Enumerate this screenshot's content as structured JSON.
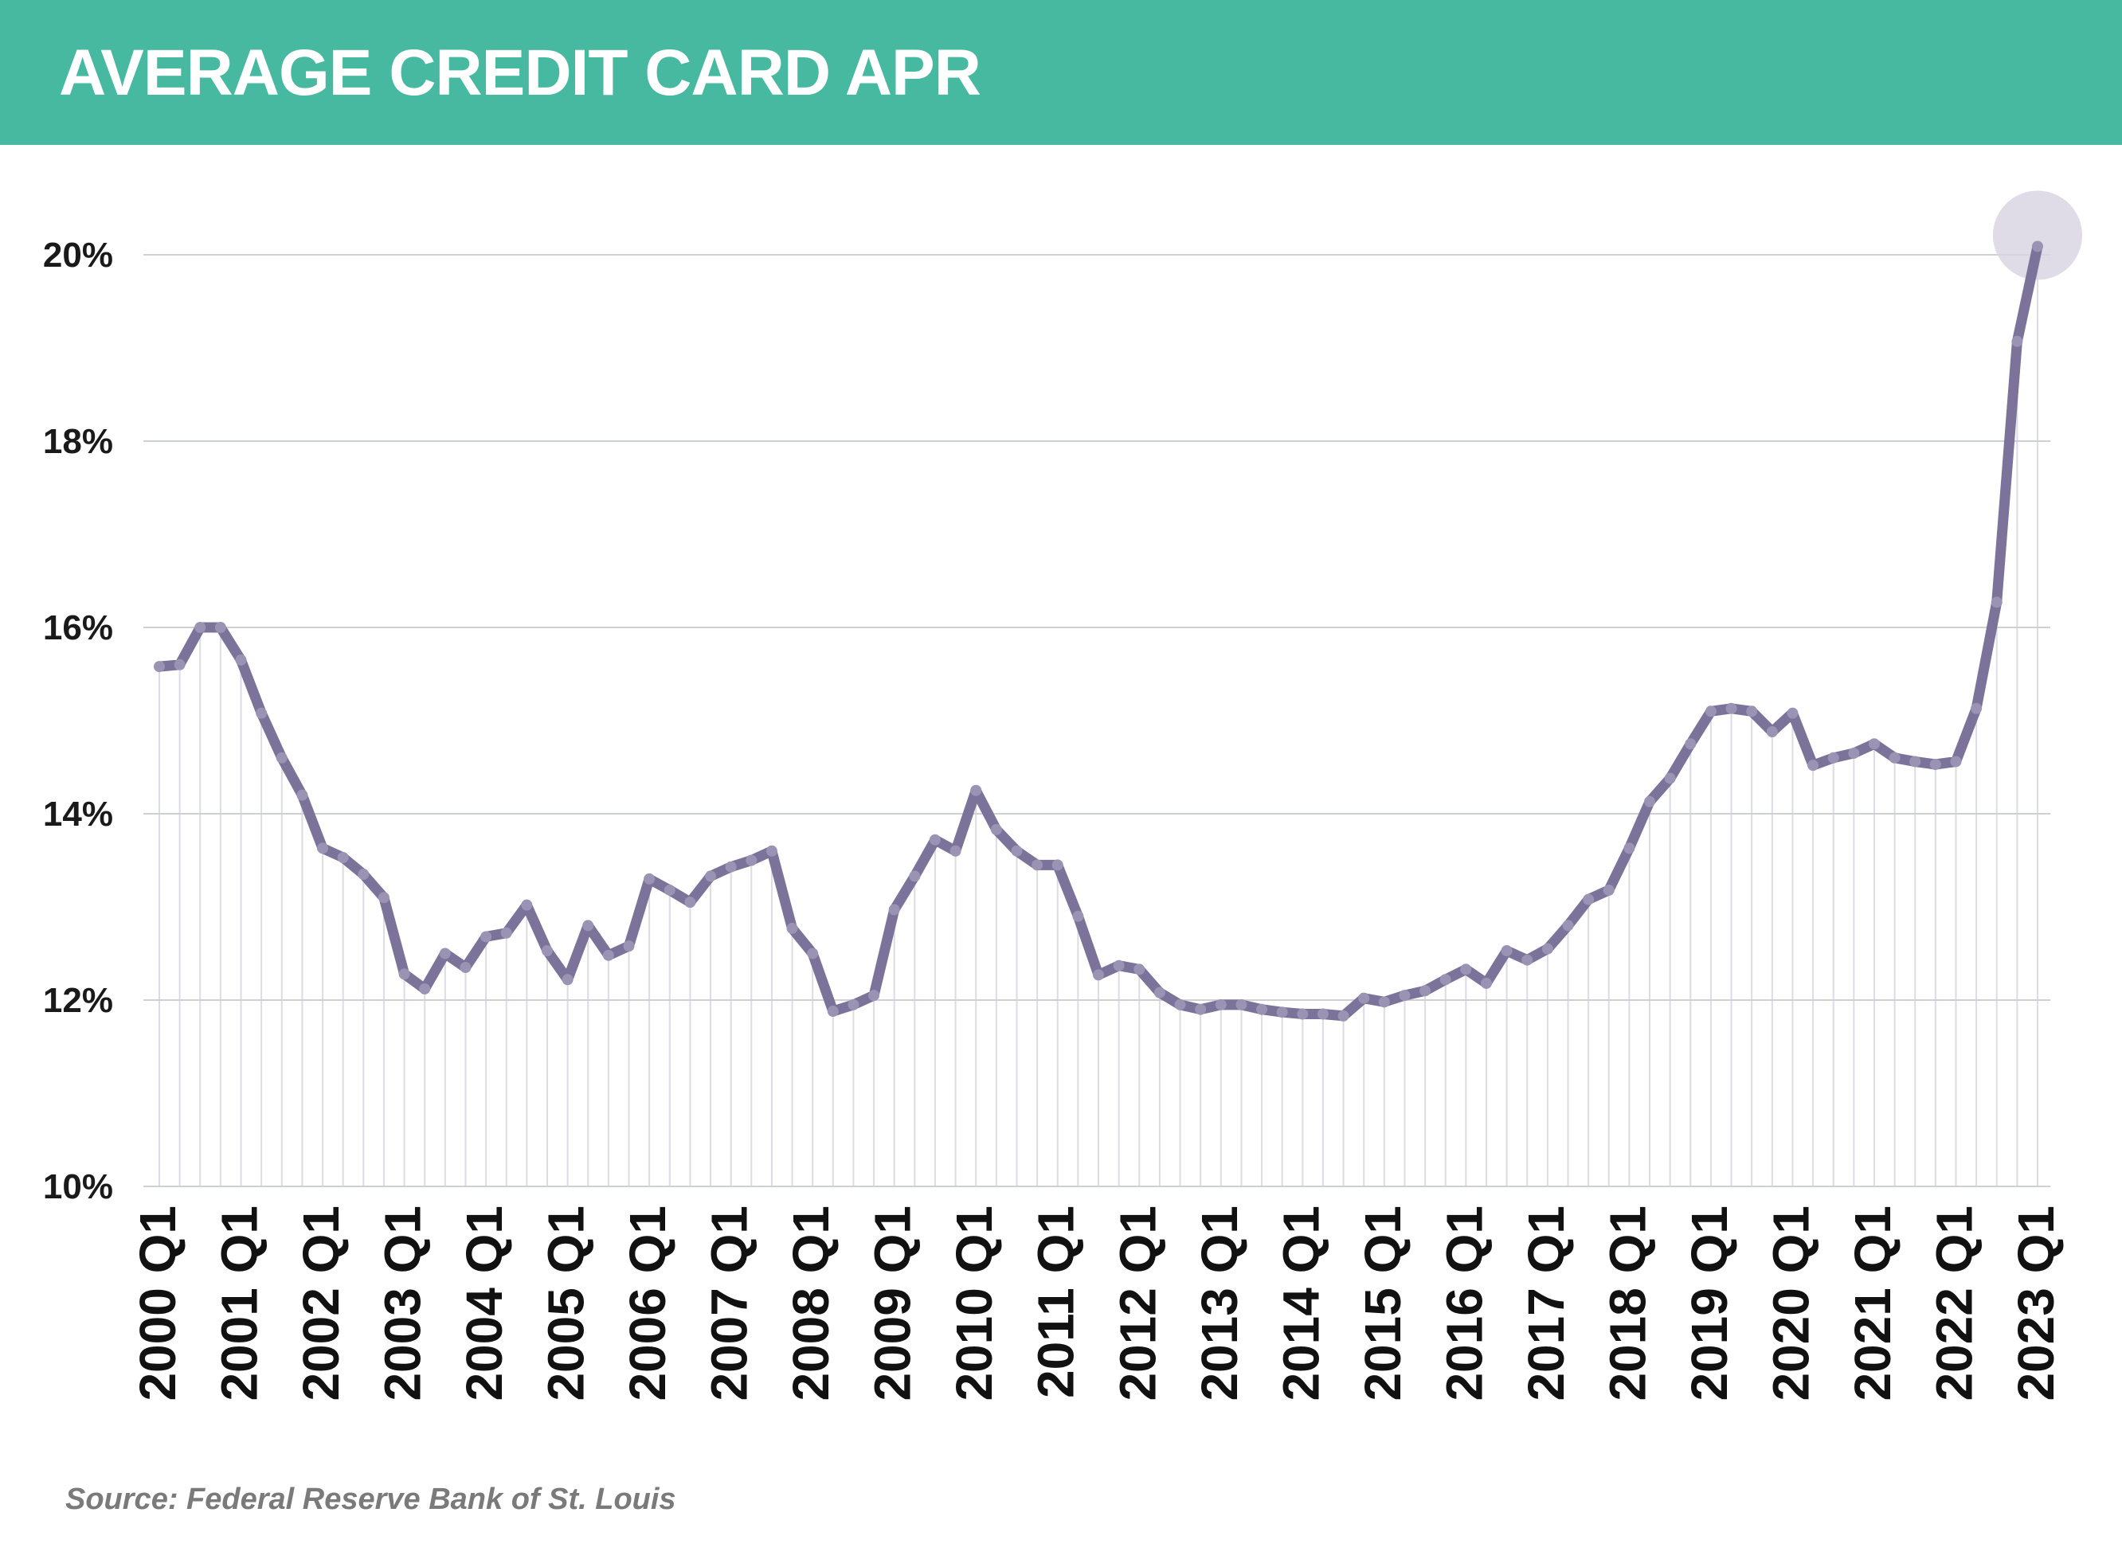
{
  "header": {
    "title": "AVERAGE CREDIT CARD APR"
  },
  "source": "Source: Federal Reserve Bank of St. Louis",
  "colors": {
    "header_bg": "#46b9a0",
    "line": "#7b7399",
    "marker": "#9a93b4",
    "highlight": "#d9d5e3",
    "grid": "#cfcfd6",
    "drop_line": "#dcdce2"
  },
  "chart_data": {
    "type": "line",
    "title": "AVERAGE CREDIT CARD APR",
    "xlabel": "",
    "ylabel": "",
    "ylim": [
      10,
      20
    ],
    "y_ticks": [
      10,
      12,
      14,
      16,
      18,
      20
    ],
    "y_tick_labels": [
      "10%",
      "12%",
      "14%",
      "16%",
      "18%",
      "20%"
    ],
    "x_tick_labels": [
      "2000 Q1",
      "2001 Q1",
      "2002 Q1",
      "2003 Q1",
      "2004 Q1",
      "2005 Q1",
      "2006 Q1",
      "2007 Q1",
      "2008 Q1",
      "2009 Q1",
      "2010 Q1",
      "2011 Q1",
      "2012 Q1",
      "2013 Q1",
      "2014 Q1",
      "2015 Q1",
      "2016 Q1",
      "2017 Q1",
      "2018 Q1",
      "2019 Q1",
      "2020 Q1",
      "2021 Q1",
      "2022 Q1",
      "2023 Q1"
    ],
    "grid": "horizontal",
    "legend": "none",
    "highlight_last_point": true,
    "series": [
      {
        "values": [
          15.58,
          15.6,
          16.0,
          16.0,
          15.65,
          15.08,
          14.6,
          14.2,
          13.63,
          13.53,
          13.35,
          13.1,
          12.28,
          12.12,
          12.5,
          12.35,
          12.68,
          12.72,
          13.02,
          12.53,
          12.22,
          12.8,
          12.48,
          12.58,
          13.3,
          13.18,
          13.05,
          13.33,
          13.43,
          13.5,
          13.6,
          12.77,
          12.5,
          11.88,
          11.95,
          12.05,
          12.97,
          13.33,
          13.72,
          13.6,
          14.25,
          13.83,
          13.6,
          13.45,
          13.45,
          12.9,
          12.27,
          12.37,
          12.33,
          12.08,
          11.95,
          11.9,
          11.95,
          11.95,
          11.9,
          11.87,
          11.85,
          11.85,
          11.83,
          12.02,
          11.98,
          12.05,
          12.1,
          12.22,
          12.33,
          12.18,
          12.53,
          12.43,
          12.55,
          12.8,
          13.08,
          13.18,
          13.63,
          14.13,
          14.38,
          14.75,
          15.1,
          15.13,
          15.1,
          14.88,
          15.08,
          14.52,
          14.6,
          14.65,
          14.75,
          14.6,
          14.56,
          14.53,
          14.56,
          15.13,
          16.27,
          19.07,
          20.09
        ]
      }
    ]
  }
}
